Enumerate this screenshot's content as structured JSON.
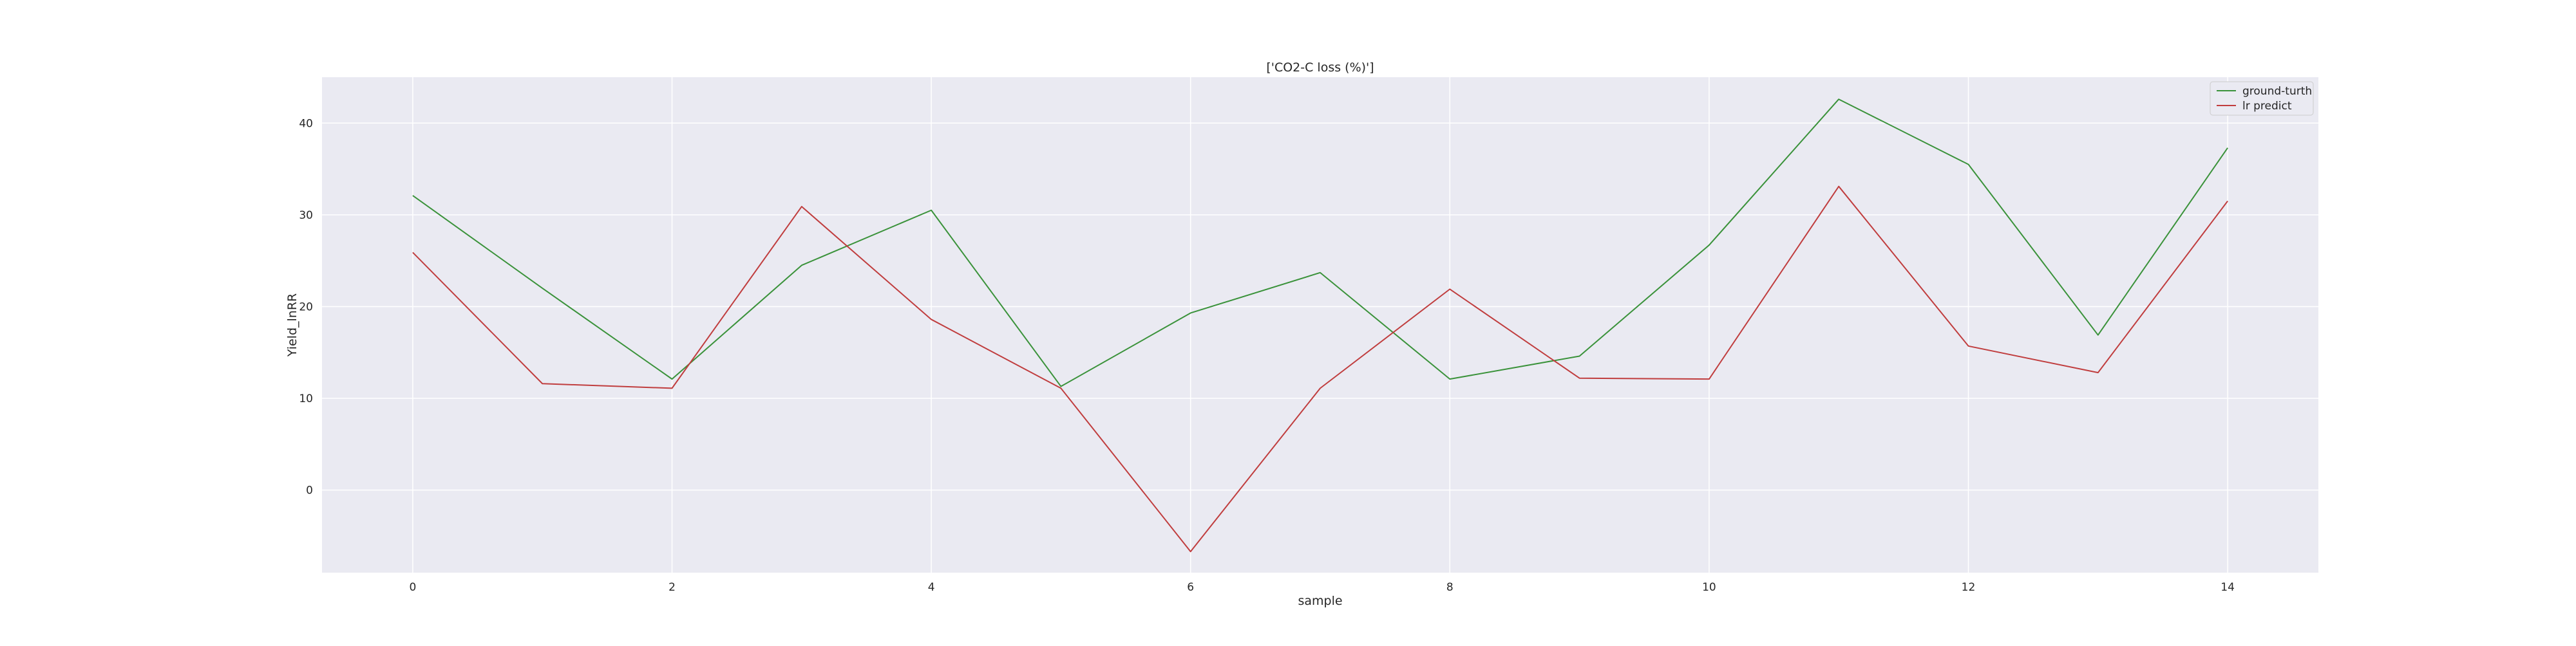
{
  "chart_data": {
    "type": "line",
    "title": "['CO2-C loss (%)']",
    "xlabel": "sample",
    "ylabel": "Yield_lnRR",
    "x": [
      0,
      1,
      2,
      3,
      4,
      5,
      6,
      7,
      8,
      9,
      10,
      11,
      12,
      13,
      14
    ],
    "xlim": [
      -0.7,
      14.7
    ],
    "ylim": [
      -9,
      45
    ],
    "xticks": [
      0,
      2,
      4,
      6,
      8,
      10,
      12,
      14
    ],
    "yticks": [
      0,
      10,
      20,
      30,
      40
    ],
    "grid": true,
    "legend_position": "top-right",
    "series": [
      {
        "name": "ground-turth",
        "color": "#3a923a",
        "values": [
          32.1,
          22.0,
          12.1,
          24.5,
          30.5,
          11.3,
          19.3,
          23.7,
          12.1,
          14.6,
          26.7,
          42.6,
          35.5,
          16.9,
          37.3
        ]
      },
      {
        "name": "lr predict",
        "color": "#c03d3e",
        "values": [
          25.9,
          11.6,
          11.1,
          30.9,
          18.6,
          11.1,
          -6.7,
          11.1,
          21.9,
          12.2,
          12.1,
          33.1,
          15.7,
          12.8,
          31.5
        ]
      }
    ]
  }
}
